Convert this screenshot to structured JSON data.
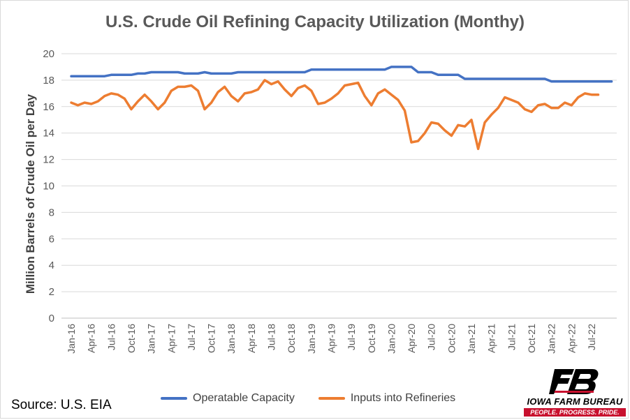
{
  "chart_data": {
    "type": "line",
    "title": "U.S. Crude Oil Refining Capacity Utilization (Monthy)",
    "xlabel": "",
    "ylabel": "Million Barrels of Crude Oil per Day",
    "ylim": [
      0,
      20
    ],
    "yticks": [
      0,
      2,
      4,
      6,
      8,
      10,
      12,
      14,
      16,
      18,
      20
    ],
    "grid": true,
    "legend": "bottom",
    "x_start": "Jan-16",
    "x_tick_labels": [
      "Jan-16",
      "Apr-16",
      "Jul-16",
      "Oct-16",
      "Jan-17",
      "Apr-17",
      "Jul-17",
      "Oct-17",
      "Jan-18",
      "Apr-18",
      "Jul-18",
      "Oct-18",
      "Jan-19",
      "Apr-19",
      "Jul-19",
      "Oct-19",
      "Jan-20",
      "Apr-20",
      "Jul-20",
      "Oct-20",
      "Jan-21",
      "Apr-21",
      "Jul-21",
      "Oct-21",
      "Jan-22",
      "Apr-22",
      "Jul-22"
    ],
    "series": [
      {
        "name": "Operatable Capacity",
        "color": "#4472c4",
        "values": [
          18.3,
          18.3,
          18.3,
          18.3,
          18.3,
          18.3,
          18.4,
          18.4,
          18.4,
          18.4,
          18.5,
          18.5,
          18.6,
          18.6,
          18.6,
          18.6,
          18.6,
          18.5,
          18.5,
          18.5,
          18.6,
          18.5,
          18.5,
          18.5,
          18.5,
          18.6,
          18.6,
          18.6,
          18.6,
          18.6,
          18.6,
          18.6,
          18.6,
          18.6,
          18.6,
          18.6,
          18.8,
          18.8,
          18.8,
          18.8,
          18.8,
          18.8,
          18.8,
          18.8,
          18.8,
          18.8,
          18.8,
          18.8,
          19.0,
          19.0,
          19.0,
          19.0,
          18.6,
          18.6,
          18.6,
          18.4,
          18.4,
          18.4,
          18.4,
          18.1,
          18.1,
          18.1,
          18.1,
          18.1,
          18.1,
          18.1,
          18.1,
          18.1,
          18.1,
          18.1,
          18.1,
          18.1,
          17.9,
          17.9,
          17.9,
          17.9,
          17.9,
          17.9,
          17.9,
          17.9,
          17.9,
          17.9
        ]
      },
      {
        "name": "Inputs into Refineries",
        "color": "#ed7d31",
        "values": [
          16.3,
          16.1,
          16.3,
          16.2,
          16.4,
          16.8,
          17.0,
          16.9,
          16.6,
          15.8,
          16.4,
          16.9,
          16.4,
          15.8,
          16.3,
          17.2,
          17.5,
          17.5,
          17.6,
          17.2,
          15.8,
          16.3,
          17.1,
          17.5,
          16.8,
          16.4,
          17.0,
          17.1,
          17.3,
          18.0,
          17.7,
          17.9,
          17.3,
          16.8,
          17.4,
          17.6,
          17.2,
          16.2,
          16.3,
          16.6,
          17.0,
          17.6,
          17.7,
          17.8,
          16.8,
          16.1,
          17.0,
          17.3,
          16.9,
          16.5,
          15.7,
          13.3,
          13.4,
          14.0,
          14.8,
          14.7,
          14.2,
          13.8,
          14.6,
          14.5,
          15.0,
          12.8,
          14.8,
          15.4,
          15.9,
          16.7,
          16.5,
          16.3,
          15.8,
          15.6,
          16.1,
          16.2,
          15.9,
          15.9,
          16.3,
          16.1,
          16.7,
          17.0,
          16.9,
          16.9
        ]
      }
    ]
  },
  "source": "Source: U.S. EIA",
  "logo": {
    "name": "IOWA FARM BUREAU",
    "tagline": "PEOPLE. PROGRESS. PRIDE.",
    "mark_text": "FB"
  },
  "colors": {
    "capacity": "#4472c4",
    "inputs": "#ed7d31",
    "grid": "#d9d9d9",
    "brand_red": "#c8102e"
  }
}
